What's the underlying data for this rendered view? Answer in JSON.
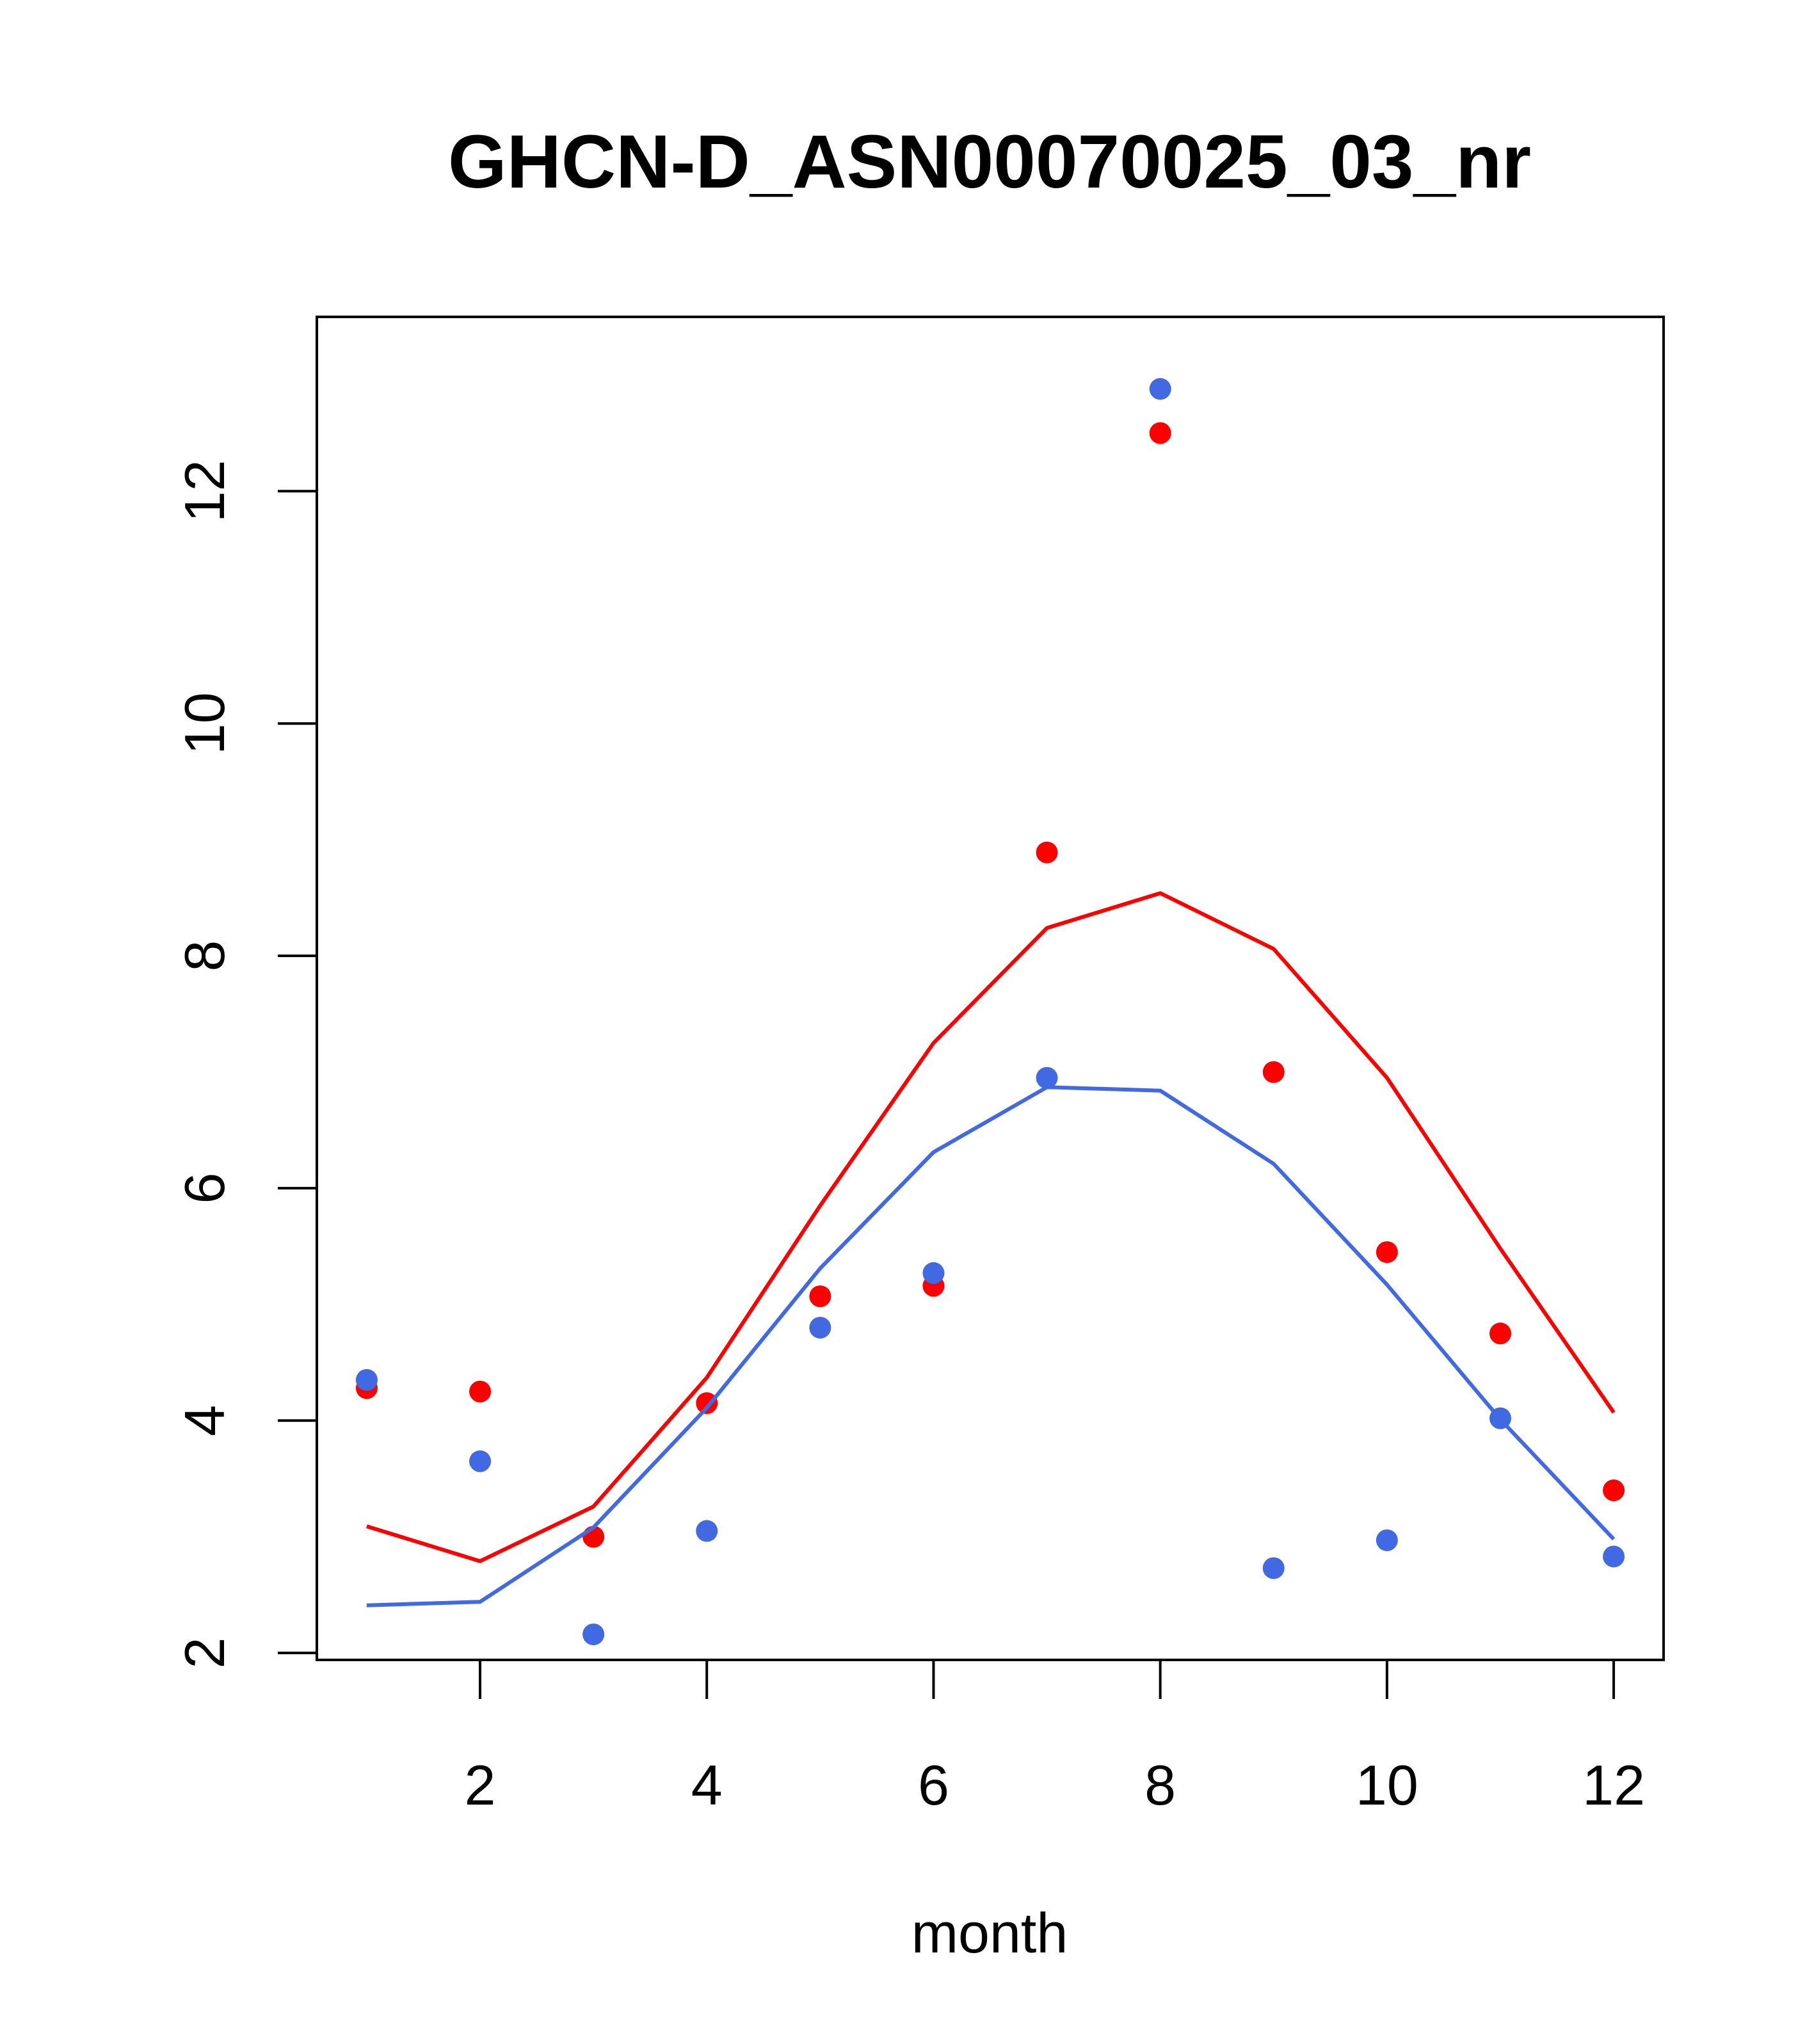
{
  "chart_data": {
    "type": "scatter",
    "title": "GHCN-D_ASN00070025_03_nr",
    "xlabel": "month",
    "ylabel": "",
    "xlim": [
      0.56,
      12.44
    ],
    "ylim": [
      1.94,
      13.5
    ],
    "xticks": [
      2,
      4,
      6,
      8,
      10,
      12
    ],
    "xtick_labels": [
      "2",
      "4",
      "6",
      "8",
      "10",
      "12"
    ],
    "yticks": [
      2,
      4,
      6,
      8,
      10,
      12
    ],
    "ytick_labels": [
      "2",
      "4",
      "6",
      "8",
      "10",
      "12"
    ],
    "grid": false,
    "legend": "none",
    "series": [
      {
        "kind": "points",
        "color": "#ff0000",
        "x": [
          1,
          2,
          3,
          4,
          5,
          6,
          7,
          8,
          9,
          10,
          11,
          12
        ],
        "y": [
          4.28,
          4.25,
          3.0,
          4.15,
          5.07,
          5.16,
          8.89,
          12.5,
          7.0,
          5.45,
          4.75,
          3.4
        ]
      },
      {
        "kind": "points",
        "color": "#4169e1",
        "x": [
          1,
          2,
          3,
          4,
          5,
          6,
          7,
          8,
          9,
          10,
          11,
          12
        ],
        "y": [
          4.35,
          3.65,
          2.16,
          3.05,
          4.8,
          5.27,
          6.95,
          12.88,
          2.73,
          2.97,
          4.02,
          2.83
        ]
      },
      {
        "kind": "line",
        "color": "#ff0000",
        "x": [
          1,
          2,
          3,
          4,
          5,
          6,
          7,
          8,
          9,
          10,
          11,
          12
        ],
        "y": [
          3.09,
          2.79,
          3.26,
          4.37,
          5.85,
          7.25,
          8.24,
          8.54,
          8.06,
          6.95,
          5.48,
          4.07
        ]
      },
      {
        "kind": "line",
        "color": "#4169e1",
        "x": [
          1,
          2,
          3,
          4,
          5,
          6,
          7,
          8,
          9,
          10,
          11,
          12
        ],
        "y": [
          2.41,
          2.44,
          3.08,
          4.11,
          5.31,
          6.31,
          6.87,
          6.84,
          6.21,
          5.17,
          4.01,
          2.98
        ]
      }
    ]
  }
}
